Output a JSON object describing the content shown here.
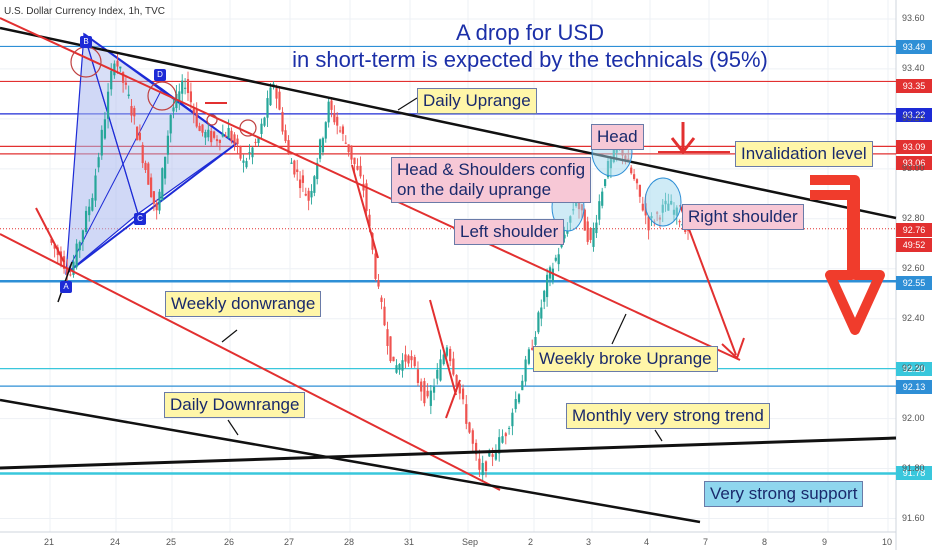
{
  "header": {
    "symbol": "U.S. Dollar Currency Index, 1h, TVC"
  },
  "title": {
    "line1": "A drop for USD",
    "line2": "in short-term is expected by the technicals (95%)"
  },
  "annotations": {
    "daily_uprange": "Daily Uprange",
    "head_shoulders": "Head & Shoulders config\non the daily uprange",
    "head": "Head",
    "left_shoulder": "Left shoulder",
    "right_shoulder": "Right shoulder",
    "invalidation": "Invalidation level",
    "weekly_donwrange": "Weekly donwrange",
    "weekly_broke": "Weekly broke Uprange",
    "daily_downrange": "Daily Downrange",
    "monthly_trend": "Monthly very strong trend",
    "very_strong_support": "Very strong support"
  },
  "pattern_points": [
    "A",
    "B",
    "C",
    "D"
  ],
  "price_tags": [
    {
      "value": "93.49",
      "color": "#2e8fd6"
    },
    {
      "value": "93.35",
      "color": "#e23030"
    },
    {
      "value": "93.22",
      "color": "#1d2bd6"
    },
    {
      "value": "93.09",
      "color": "#e23030"
    },
    {
      "value": "93.06",
      "color": "#e23030"
    },
    {
      "value": "92.76",
      "color": "#e23030"
    },
    {
      "value": "49:52",
      "color": "#e23030"
    },
    {
      "value": "92.55",
      "color": "#2e8fd6"
    },
    {
      "value": "92.20",
      "color": "#39c7dc"
    },
    {
      "value": "92.13",
      "color": "#2e8fd6"
    },
    {
      "value": "91.78",
      "color": "#39c7dc"
    }
  ],
  "colors": {
    "up": "#26a69a",
    "down": "#ef5350",
    "trend_red": "#e23030",
    "trend_black": "#111111",
    "pattern_fill": "#a9b8ee",
    "pattern_stroke": "#1d2bd6",
    "arrow": "#f03c2c"
  },
  "chart_data": {
    "type": "candlestick",
    "title": "A drop for USD in short-term is expected by the technicals (95%)",
    "symbol": "U.S. Dollar Currency Index",
    "timeframe": "1h",
    "ylim": [
      91.55,
      93.7
    ],
    "y_ticks": [
      "93.60",
      "93.40",
      "93.20",
      "93.00",
      "92.80",
      "92.60",
      "92.40",
      "92.20",
      "92.00",
      "91.80",
      "91.60"
    ],
    "x_ticks": [
      "21",
      "24",
      "25",
      "26",
      "27",
      "28",
      "31",
      "Sep",
      "2",
      "3",
      "4",
      "7",
      "8",
      "9",
      "10"
    ],
    "price_path": [
      [
        "21",
        92.72
      ],
      [
        "21",
        92.58
      ],
      [
        "21",
        92.9
      ],
      [
        "24",
        93.45
      ],
      [
        "24",
        93.28
      ],
      [
        "24",
        93.05
      ],
      [
        "24",
        92.82
      ],
      [
        "25",
        93.22
      ],
      [
        "25",
        93.35
      ],
      [
        "25",
        93.15
      ],
      [
        "25",
        93.12
      ],
      [
        "26",
        93.15
      ],
      [
        "26",
        93.02
      ],
      [
        "26",
        93.12
      ],
      [
        "26",
        93.35
      ],
      [
        "27",
        93.05
      ],
      [
        "27",
        92.88
      ],
      [
        "27",
        93.25
      ],
      [
        "28",
        93.08
      ],
      [
        "28",
        92.92
      ],
      [
        "28",
        92.5
      ],
      [
        "28",
        92.2
      ],
      [
        "31",
        92.25
      ],
      [
        "31",
        92.06
      ],
      [
        "31",
        92.3
      ],
      [
        "Sep",
        92.0
      ],
      [
        "Sep",
        91.78
      ],
      [
        "Sep",
        91.86
      ],
      [
        "Sep",
        91.95
      ],
      [
        "Sep",
        92.12
      ],
      [
        "2",
        92.3
      ],
      [
        "2",
        92.55
      ],
      [
        "2",
        92.7
      ],
      [
        "2",
        92.88
      ],
      [
        "3",
        92.7
      ],
      [
        "3",
        92.98
      ],
      [
        "3",
        93.1
      ],
      [
        "3",
        92.95
      ],
      [
        "4",
        92.78
      ],
      [
        "4",
        92.86
      ],
      [
        "4",
        92.76
      ]
    ],
    "horizontal_levels": [
      93.49,
      93.35,
      93.22,
      93.09,
      93.06,
      92.55,
      92.2,
      92.13,
      91.78
    ],
    "last_price": 92.76,
    "grid": true,
    "legend": "none"
  }
}
